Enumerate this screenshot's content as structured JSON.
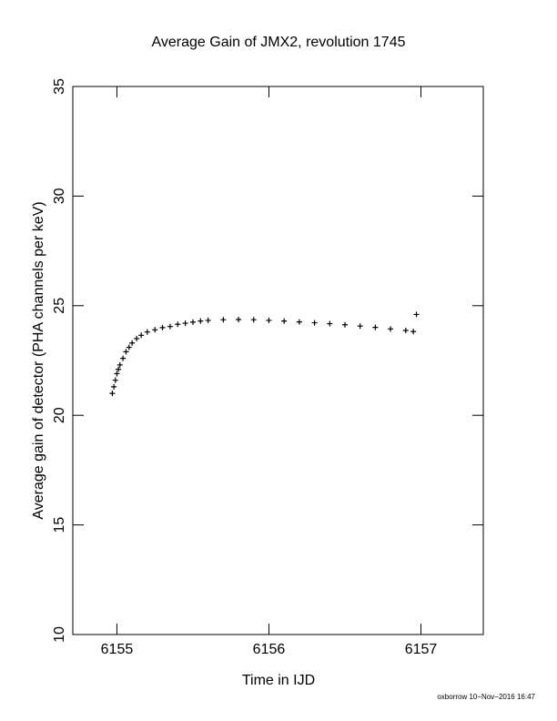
{
  "chart_data": {
    "type": "scatter",
    "title": "Average Gain of JMX2, revolution 1745",
    "x_label": "Time in IJD",
    "y_label": "Average gain of detector (PHA channels per keV)",
    "footer": "oxborrow 10−Nov−2016 16:47",
    "color": "#000000",
    "x": [
      6154.97,
      6154.98,
      6154.99,
      6155.0,
      6155.01,
      6155.02,
      6155.04,
      6155.06,
      6155.08,
      6155.1,
      6155.13,
      6155.16,
      6155.2,
      6155.25,
      6155.3,
      6155.35,
      6155.4,
      6155.45,
      6155.5,
      6155.55,
      6155.6,
      6155.7,
      6155.8,
      6155.9,
      6156.0,
      6156.1,
      6156.2,
      6156.3,
      6156.4,
      6156.5,
      6156.6,
      6156.7,
      6156.8,
      6156.9,
      6156.95,
      6156.97
    ],
    "values": [
      21.0,
      21.3,
      21.6,
      21.9,
      22.1,
      22.3,
      22.6,
      22.9,
      23.1,
      23.3,
      23.5,
      23.65,
      23.8,
      23.9,
      24.0,
      24.05,
      24.15,
      24.2,
      24.25,
      24.3,
      24.33,
      24.36,
      24.37,
      24.36,
      24.33,
      24.3,
      24.26,
      24.22,
      24.18,
      24.13,
      24.07,
      24.01,
      23.94,
      23.87,
      23.82,
      24.6
    ],
    "xlim": [
      6154.71,
      6157.41
    ],
    "xticks": [
      6155,
      6156,
      6157
    ],
    "ylim": [
      10,
      35
    ],
    "yticks": [
      10,
      15,
      20,
      25,
      30,
      35
    ]
  }
}
